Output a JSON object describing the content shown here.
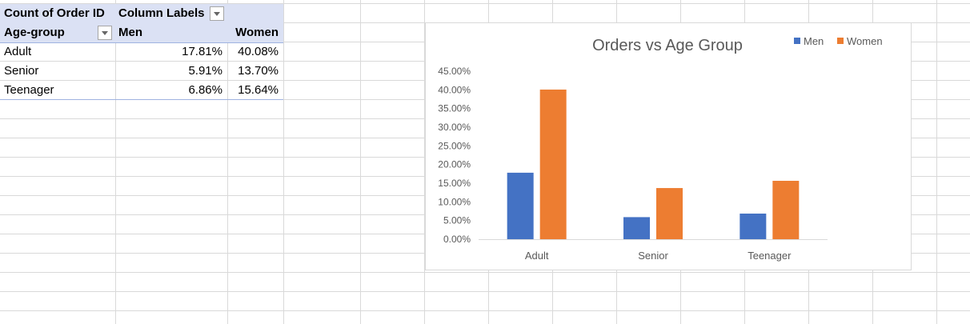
{
  "pivot": {
    "header1": {
      "label": "Count of Order ID",
      "column_labels": "Column Labels"
    },
    "header2": {
      "row_label": "Age-group",
      "col_men": "Men",
      "col_women": "Women"
    },
    "rows": [
      {
        "group": "Adult",
        "men": "17.81%",
        "women": "40.08%"
      },
      {
        "group": "Senior",
        "men": "5.91%",
        "women": "13.70%"
      },
      {
        "group": "Teenager",
        "men": "6.86%",
        "women": "15.64%"
      }
    ]
  },
  "chart_data": {
    "type": "bar",
    "title": "Orders vs Age Group",
    "categories": [
      "Adult",
      "Senior",
      "Teenager"
    ],
    "series": [
      {
        "name": "Men",
        "values": [
          17.81,
          5.91,
          6.86
        ],
        "color": "#4472c4"
      },
      {
        "name": "Women",
        "values": [
          40.08,
          13.7,
          15.64
        ],
        "color": "#ed7d31"
      }
    ],
    "ylim": [
      0,
      45
    ],
    "ytick_labels": [
      "0.00%",
      "5.00%",
      "10.00%",
      "15.00%",
      "20.00%",
      "25.00%",
      "30.00%",
      "35.00%",
      "40.00%",
      "45.00%"
    ],
    "legend_position": "top-right",
    "grid": false
  }
}
